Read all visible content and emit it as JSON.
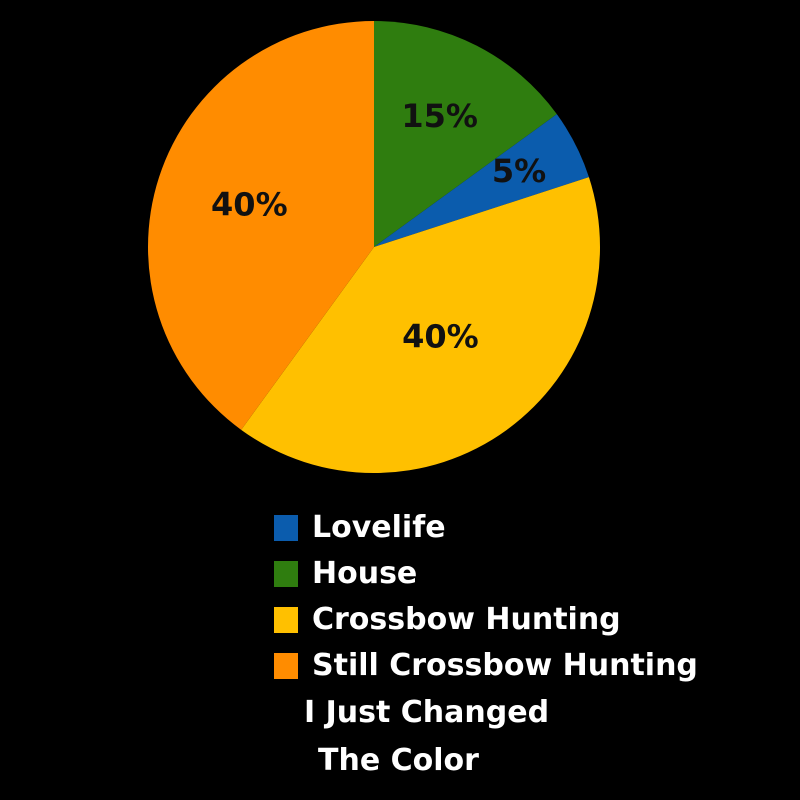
{
  "chart_data": {
    "type": "pie",
    "slices": [
      {
        "label": "Lovelife",
        "value": 5,
        "display": "5%",
        "color": "#0b5cad"
      },
      {
        "label": "House",
        "value": 15,
        "display": "15%",
        "color": "#2f7d0f"
      },
      {
        "label": "Crossbow Hunting",
        "value": 40,
        "display": "40%",
        "color": "#ffc000"
      },
      {
        "label": "Still Crossbow Hunting",
        "value": 40,
        "display": "40%",
        "color": "#ff8c00"
      }
    ],
    "legend_note": [
      "I Just Changed",
      "The Color"
    ],
    "legend_position": "bottom",
    "background": "#000000"
  }
}
